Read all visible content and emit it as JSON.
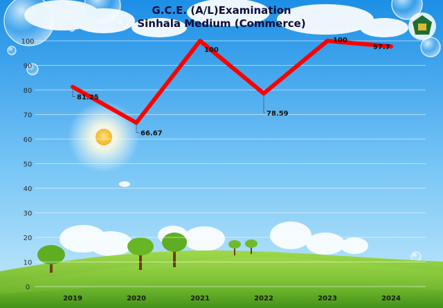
{
  "title_line1": "G.C.E. (A/L)Examination",
  "title_line2": "Sinhala Medium (Commerce)",
  "colors": {
    "sky_top": "#1c8fe6",
    "sky_bottom": "#b7e2fb",
    "series_line": "#ff0000",
    "grass_light": "#8ccf3a",
    "grass_dark": "#4f9b1c"
  },
  "chart_data": {
    "type": "line",
    "title": "G.C.E. (A/L)Examination Sinhala Medium (Commerce)",
    "categories": [
      "2019",
      "2020",
      "2021",
      "2022",
      "2023",
      "2024"
    ],
    "series": [
      {
        "values": [
          81.25,
          66.67,
          100,
          78.59,
          100,
          97.7
        ]
      }
    ],
    "data_labels": [
      "81.25",
      "66.67",
      "100",
      "78.59",
      "100",
      "97.7"
    ],
    "y_ticks": [
      0,
      10,
      20,
      30,
      40,
      50,
      60,
      70,
      80,
      90,
      100
    ],
    "ylim": [
      0,
      100
    ],
    "grid": true,
    "legend": "none"
  }
}
